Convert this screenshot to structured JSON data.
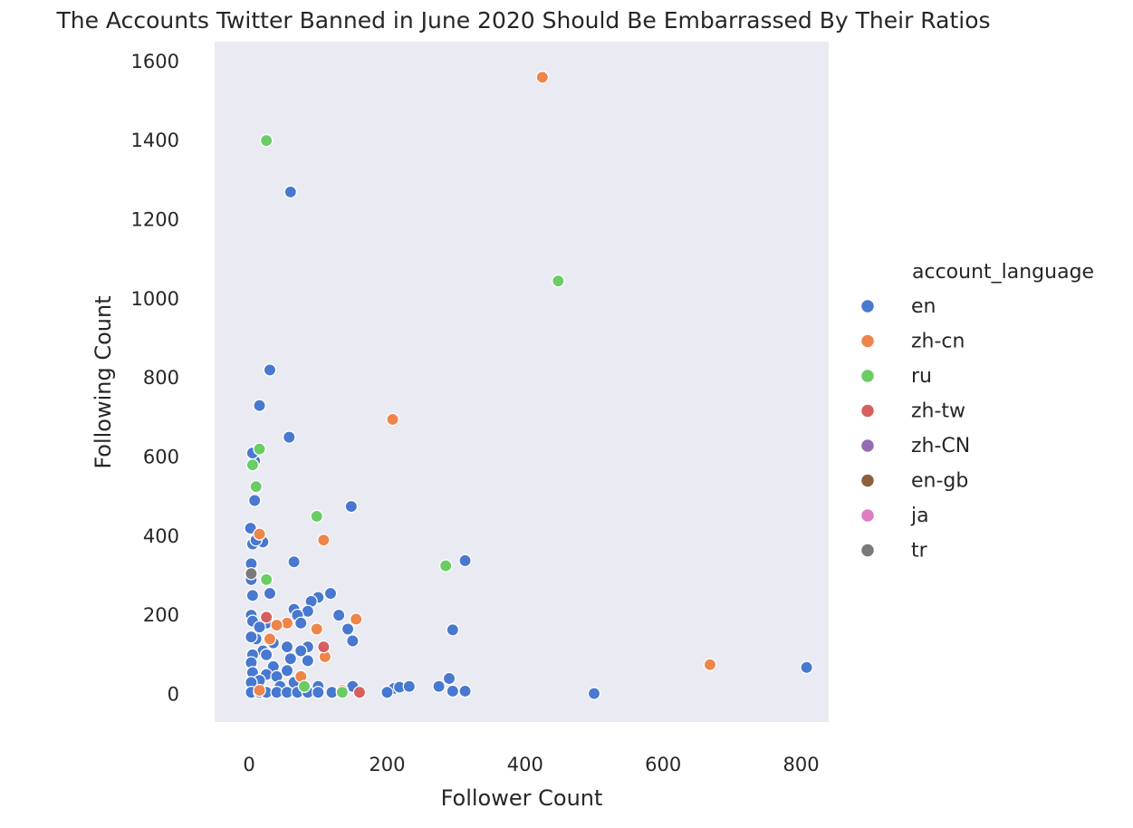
{
  "chart_data": {
    "type": "scatter",
    "title": "The Accounts Twitter Banned in June 2020 Should Be Embarrassed By Their Ratios",
    "xlabel": "Follower Count",
    "ylabel": "Following Count",
    "xlim": [
      -50,
      840
    ],
    "ylim": [
      -70,
      1650
    ],
    "xticks": [
      0,
      200,
      400,
      600,
      800
    ],
    "yticks": [
      0,
      200,
      400,
      600,
      800,
      1000,
      1200,
      1400,
      1600
    ],
    "grid": false,
    "background": "#eaeaf2",
    "legend": {
      "title": "account_language",
      "placement": "outside-right"
    },
    "series": [
      {
        "name": "en",
        "color": "#4878d0",
        "points": [
          [
            60,
            1270
          ],
          [
            30,
            820
          ],
          [
            15,
            730
          ],
          [
            58,
            650
          ],
          [
            8,
            590
          ],
          [
            5,
            610
          ],
          [
            8,
            490
          ],
          [
            148,
            475
          ],
          [
            2,
            420
          ],
          [
            5,
            380
          ],
          [
            20,
            385
          ],
          [
            10,
            390
          ],
          [
            65,
            335
          ],
          [
            313,
            338
          ],
          [
            3,
            330
          ],
          [
            3,
            290
          ],
          [
            5,
            250
          ],
          [
            30,
            255
          ],
          [
            118,
            255
          ],
          [
            100,
            245
          ],
          [
            90,
            235
          ],
          [
            65,
            215
          ],
          [
            85,
            210
          ],
          [
            70,
            200
          ],
          [
            130,
            200
          ],
          [
            3,
            200
          ],
          [
            5,
            185
          ],
          [
            25,
            180
          ],
          [
            75,
            180
          ],
          [
            15,
            170
          ],
          [
            143,
            165
          ],
          [
            295,
            163
          ],
          [
            10,
            140
          ],
          [
            3,
            145
          ],
          [
            35,
            130
          ],
          [
            150,
            135
          ],
          [
            55,
            120
          ],
          [
            85,
            120
          ],
          [
            20,
            110
          ],
          [
            75,
            110
          ],
          [
            5,
            100
          ],
          [
            25,
            100
          ],
          [
            60,
            90
          ],
          [
            3,
            80
          ],
          [
            85,
            85
          ],
          [
            35,
            70
          ],
          [
            55,
            60
          ],
          [
            5,
            55
          ],
          [
            25,
            50
          ],
          [
            40,
            45
          ],
          [
            15,
            35
          ],
          [
            65,
            30
          ],
          [
            3,
            30
          ],
          [
            45,
            20
          ],
          [
            100,
            20
          ],
          [
            150,
            20
          ],
          [
            210,
            15
          ],
          [
            218,
            18
          ],
          [
            232,
            20
          ],
          [
            275,
            20
          ],
          [
            290,
            40
          ],
          [
            3,
            5
          ],
          [
            15,
            5
          ],
          [
            25,
            5
          ],
          [
            40,
            5
          ],
          [
            55,
            5
          ],
          [
            70,
            5
          ],
          [
            85,
            5
          ],
          [
            100,
            5
          ],
          [
            120,
            5
          ],
          [
            200,
            5
          ],
          [
            295,
            8
          ],
          [
            313,
            8
          ],
          [
            500,
            2
          ],
          [
            808,
            68
          ]
        ]
      },
      {
        "name": "zh-cn",
        "color": "#ee854a",
        "points": [
          [
            425,
            1560
          ],
          [
            208,
            695
          ],
          [
            15,
            405
          ],
          [
            108,
            390
          ],
          [
            155,
            190
          ],
          [
            55,
            180
          ],
          [
            40,
            175
          ],
          [
            98,
            165
          ],
          [
            30,
            140
          ],
          [
            110,
            95
          ],
          [
            75,
            45
          ],
          [
            15,
            10
          ],
          [
            135,
            10
          ],
          [
            668,
            75
          ]
        ]
      },
      {
        "name": "ru",
        "color": "#6acc64",
        "points": [
          [
            25,
            1400
          ],
          [
            448,
            1045
          ],
          [
            15,
            620
          ],
          [
            5,
            580
          ],
          [
            10,
            525
          ],
          [
            98,
            450
          ],
          [
            285,
            325
          ],
          [
            25,
            290
          ],
          [
            80,
            20
          ],
          [
            135,
            5
          ]
        ]
      },
      {
        "name": "zh-tw",
        "color": "#d65f5f",
        "points": [
          [
            25,
            195
          ],
          [
            108,
            120
          ],
          [
            160,
            5
          ]
        ]
      },
      {
        "name": "zh-CN",
        "color": "#956cb4",
        "points": []
      },
      {
        "name": "en-gb",
        "color": "#8c613c",
        "points": []
      },
      {
        "name": "ja",
        "color": "#dc7ec0",
        "points": []
      },
      {
        "name": "tr",
        "color": "#797979",
        "points": [
          [
            3,
            305
          ]
        ]
      }
    ]
  }
}
